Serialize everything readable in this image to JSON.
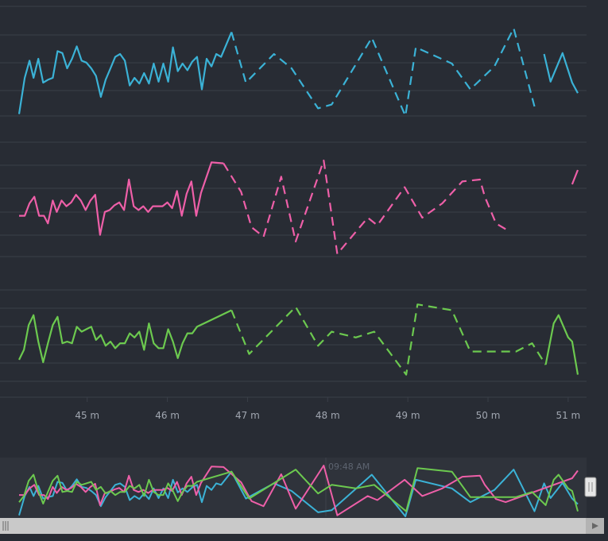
{
  "colors": {
    "background": "#282c34",
    "grid": "#3a3f48",
    "blue": "#3bb2d6",
    "pink": "#ee5fa8",
    "green": "#6cc94f",
    "scrollbar": "#c9c9c9",
    "scrollbar_track": "#b3b3b3"
  },
  "navigator": {
    "time_label": "09:48 AM"
  },
  "chart_data": {
    "type": "line",
    "title": "",
    "xlabel": "",
    "x_unit": "minutes",
    "xlim": [
      44.15,
      51.15
    ],
    "x_ticks": [
      45,
      46,
      47,
      48,
      49,
      50,
      51
    ],
    "x_tick_labels": [
      "45 m",
      "46 m",
      "47 m",
      "48 m",
      "49 m",
      "50 m",
      "51 m"
    ],
    "grid": true,
    "legend": "none",
    "panels": [
      {
        "series": [
          {
            "color": "blue",
            "ylim": [
              0,
              100
            ],
            "dashed_from_x": 46.8,
            "dashed_to_x": 50.63,
            "points": [
              [
                44.15,
                2
              ],
              [
                44.22,
                40
              ],
              [
                44.28,
                58
              ],
              [
                44.33,
                40
              ],
              [
                44.39,
                60
              ],
              [
                44.45,
                35
              ],
              [
                44.51,
                38
              ],
              [
                44.57,
                40
              ],
              [
                44.63,
                68
              ],
              [
                44.69,
                66
              ],
              [
                44.75,
                50
              ],
              [
                44.81,
                60
              ],
              [
                44.87,
                73
              ],
              [
                44.93,
                58
              ],
              [
                44.99,
                56
              ],
              [
                45.05,
                50
              ],
              [
                45.11,
                42
              ],
              [
                45.17,
                20
              ],
              [
                45.23,
                38
              ],
              [
                45.29,
                50
              ],
              [
                45.35,
                62
              ],
              [
                45.41,
                65
              ],
              [
                45.47,
                58
              ],
              [
                45.53,
                32
              ],
              [
                45.59,
                40
              ],
              [
                45.65,
                34
              ],
              [
                45.71,
                45
              ],
              [
                45.77,
                34
              ],
              [
                45.83,
                55
              ],
              [
                45.89,
                36
              ],
              [
                45.95,
                55
              ],
              [
                46.01,
                36
              ],
              [
                46.07,
                72
              ],
              [
                46.13,
                47
              ],
              [
                46.19,
                55
              ],
              [
                46.25,
                48
              ],
              [
                46.31,
                57
              ],
              [
                46.37,
                62
              ],
              [
                46.43,
                28
              ],
              [
                46.49,
                60
              ],
              [
                46.55,
                52
              ],
              [
                46.61,
                65
              ],
              [
                46.67,
                62
              ],
              [
                46.8,
                88
              ],
              [
                46.98,
                35
              ],
              [
                47.33,
                65
              ],
              [
                47.55,
                50
              ],
              [
                47.88,
                8
              ],
              [
                48.05,
                12
              ],
              [
                48.55,
                82
              ],
              [
                48.97,
                0
              ],
              [
                49.1,
                72
              ],
              [
                49.55,
                55
              ],
              [
                49.78,
                28
              ],
              [
                50.08,
                52
              ],
              [
                50.32,
                92
              ],
              [
                50.58,
                10
              ],
              [
                50.7,
                65
              ],
              [
                50.78,
                36
              ],
              [
                50.93,
                66
              ],
              [
                51.05,
                35
              ],
              [
                51.12,
                24
              ]
            ]
          }
        ]
      },
      {
        "series": [
          {
            "color": "pink",
            "ylim": [
              0,
              100
            ],
            "dashed_from_x": 46.7,
            "dashed_to_x": 50.65,
            "points": [
              [
                44.15,
                42
              ],
              [
                44.22,
                42
              ],
              [
                44.28,
                55
              ],
              [
                44.34,
                62
              ],
              [
                44.4,
                42
              ],
              [
                44.46,
                42
              ],
              [
                44.51,
                34
              ],
              [
                44.57,
                58
              ],
              [
                44.62,
                46
              ],
              [
                44.68,
                58
              ],
              [
                44.74,
                52
              ],
              [
                44.8,
                56
              ],
              [
                44.86,
                64
              ],
              [
                44.92,
                58
              ],
              [
                44.98,
                48
              ],
              [
                45.04,
                58
              ],
              [
                45.1,
                64
              ],
              [
                45.16,
                22
              ],
              [
                45.22,
                46
              ],
              [
                45.28,
                48
              ],
              [
                45.34,
                53
              ],
              [
                45.4,
                56
              ],
              [
                45.46,
                48
              ],
              [
                45.52,
                80
              ],
              [
                45.58,
                52
              ],
              [
                45.64,
                48
              ],
              [
                45.7,
                52
              ],
              [
                45.76,
                46
              ],
              [
                45.82,
                52
              ],
              [
                45.88,
                52
              ],
              [
                45.94,
                52
              ],
              [
                46.0,
                56
              ],
              [
                46.06,
                50
              ],
              [
                46.12,
                68
              ],
              [
                46.18,
                42
              ],
              [
                46.24,
                65
              ],
              [
                46.3,
                78
              ],
              [
                46.36,
                42
              ],
              [
                46.42,
                66
              ],
              [
                46.55,
                98
              ],
              [
                46.7,
                97
              ],
              [
                46.92,
                67
              ],
              [
                47.05,
                30
              ],
              [
                47.2,
                20
              ],
              [
                47.42,
                83
              ],
              [
                47.6,
                15
              ],
              [
                47.95,
                100
              ],
              [
                48.12,
                2
              ],
              [
                48.5,
                40
              ],
              [
                48.62,
                32
              ],
              [
                48.96,
                72
              ],
              [
                49.18,
                40
              ],
              [
                49.43,
                55
              ],
              [
                49.68,
                78
              ],
              [
                49.9,
                80
              ],
              [
                49.96,
                62
              ],
              [
                50.1,
                34
              ],
              [
                50.22,
                28
              ],
              [
                51.05,
                75
              ],
              [
                51.12,
                90
              ]
            ]
          }
        ]
      },
      {
        "series": [
          {
            "color": "green",
            "ylim": [
              0,
              100
            ],
            "dashed_from_x": 46.8,
            "dashed_to_x": 50.72,
            "points": [
              [
                44.15,
                28
              ],
              [
                44.21,
                40
              ],
              [
                44.27,
                70
              ],
              [
                44.33,
                82
              ],
              [
                44.39,
                50
              ],
              [
                44.45,
                25
              ],
              [
                44.51,
                48
              ],
              [
                44.57,
                70
              ],
              [
                44.63,
                80
              ],
              [
                44.69,
                48
              ],
              [
                44.75,
                50
              ],
              [
                44.81,
                48
              ],
              [
                44.87,
                68
              ],
              [
                44.93,
                62
              ],
              [
                44.99,
                65
              ],
              [
                45.05,
                68
              ],
              [
                45.11,
                52
              ],
              [
                45.17,
                58
              ],
              [
                45.23,
                45
              ],
              [
                45.29,
                50
              ],
              [
                45.35,
                42
              ],
              [
                45.41,
                48
              ],
              [
                45.47,
                48
              ],
              [
                45.53,
                60
              ],
              [
                45.59,
                55
              ],
              [
                45.65,
                62
              ],
              [
                45.71,
                40
              ],
              [
                45.77,
                72
              ],
              [
                45.83,
                48
              ],
              [
                45.89,
                42
              ],
              [
                45.95,
                42
              ],
              [
                46.01,
                65
              ],
              [
                46.07,
                50
              ],
              [
                46.13,
                30
              ],
              [
                46.19,
                48
              ],
              [
                46.25,
                60
              ],
              [
                46.31,
                60
              ],
              [
                46.37,
                68
              ],
              [
                46.8,
                88
              ],
              [
                47.02,
                35
              ],
              [
                47.6,
                92
              ],
              [
                47.88,
                45
              ],
              [
                48.05,
                62
              ],
              [
                48.35,
                55
              ],
              [
                48.58,
                62
              ],
              [
                48.98,
                10
              ],
              [
                49.12,
                95
              ],
              [
                49.55,
                88
              ],
              [
                49.78,
                38
              ],
              [
                50.35,
                38
              ],
              [
                50.55,
                48
              ],
              [
                50.72,
                22
              ],
              [
                50.82,
                72
              ],
              [
                50.88,
                82
              ],
              [
                51.0,
                55
              ],
              [
                51.05,
                50
              ],
              [
                51.12,
                10
              ]
            ]
          }
        ]
      }
    ]
  }
}
